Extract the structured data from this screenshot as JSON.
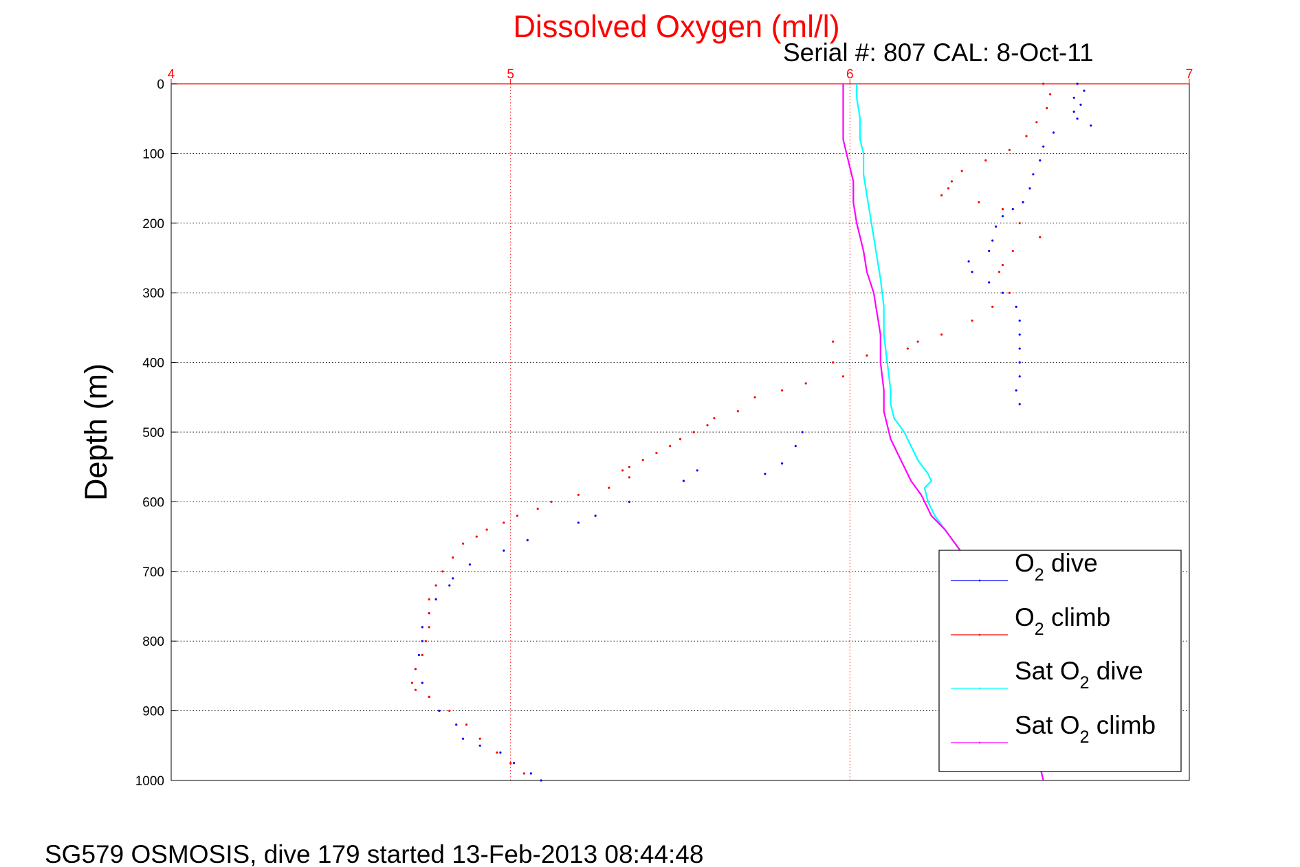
{
  "chart_data": {
    "type": "scatter",
    "title": "Dissolved Oxygen (ml/l)",
    "subtitle": "Serial #: 807  CAL: 8-Oct-11",
    "ylabel": "Depth (m)",
    "footer": "SG579 OSMOSIS, dive 179 started 13-Feb-2013 08:44:48",
    "xlim": [
      4,
      7
    ],
    "ylim": [
      0,
      1000
    ],
    "y_reversed": true,
    "x_ticks": [
      "4",
      "5",
      "6",
      "7"
    ],
    "y_ticks": [
      "0",
      "100",
      "200",
      "300",
      "400",
      "500",
      "600",
      "700",
      "800",
      "900",
      "1000"
    ],
    "grid": true,
    "legend_position": "lower-right",
    "series": [
      {
        "name": "O2 dive",
        "legend_main": "O",
        "legend_sub": "2",
        "legend_tail": " dive",
        "color": "#0000ff",
        "style": "dots",
        "points": [
          [
            6.67,
            0
          ],
          [
            6.69,
            10
          ],
          [
            6.66,
            20
          ],
          [
            6.68,
            30
          ],
          [
            6.66,
            40
          ],
          [
            6.67,
            50
          ],
          [
            6.71,
            60
          ],
          [
            6.6,
            70
          ],
          [
            6.57,
            90
          ],
          [
            6.56,
            110
          ],
          [
            6.54,
            130
          ],
          [
            6.53,
            150
          ],
          [
            6.51,
            170
          ],
          [
            6.48,
            180
          ],
          [
            6.45,
            190
          ],
          [
            6.43,
            205
          ],
          [
            6.42,
            225
          ],
          [
            6.41,
            240
          ],
          [
            6.35,
            255
          ],
          [
            6.36,
            270
          ],
          [
            6.41,
            285
          ],
          [
            6.45,
            300
          ],
          [
            6.49,
            320
          ],
          [
            6.5,
            340
          ],
          [
            6.5,
            360
          ],
          [
            6.5,
            380
          ],
          [
            6.5,
            400
          ],
          [
            6.5,
            420
          ],
          [
            6.49,
            440
          ],
          [
            6.5,
            460
          ],
          [
            5.86,
            500
          ],
          [
            5.84,
            520
          ],
          [
            5.8,
            545
          ],
          [
            5.75,
            560
          ],
          [
            5.55,
            555
          ],
          [
            5.51,
            570
          ],
          [
            5.35,
            600
          ],
          [
            5.25,
            620
          ],
          [
            5.2,
            630
          ],
          [
            5.05,
            655
          ],
          [
            4.98,
            670
          ],
          [
            4.88,
            690
          ],
          [
            4.83,
            710
          ],
          [
            4.82,
            720
          ],
          [
            4.78,
            740
          ],
          [
            4.76,
            760
          ],
          [
            4.74,
            780
          ],
          [
            4.74,
            800
          ],
          [
            4.73,
            820
          ],
          [
            4.72,
            840
          ],
          [
            4.74,
            860
          ],
          [
            4.76,
            880
          ],
          [
            4.79,
            900
          ],
          [
            4.84,
            920
          ],
          [
            4.86,
            940
          ],
          [
            4.91,
            950
          ],
          [
            4.97,
            960
          ],
          [
            5.01,
            975
          ],
          [
            5.06,
            990
          ],
          [
            5.09,
            1000
          ]
        ]
      },
      {
        "name": "O2 climb",
        "legend_main": "O",
        "legend_sub": "2",
        "legend_tail": " climb",
        "color": "#ff0000",
        "style": "dots",
        "points": [
          [
            6.57,
            0
          ],
          [
            6.59,
            15
          ],
          [
            6.58,
            35
          ],
          [
            6.55,
            55
          ],
          [
            6.52,
            75
          ],
          [
            6.47,
            95
          ],
          [
            6.4,
            110
          ],
          [
            6.33,
            125
          ],
          [
            6.3,
            140
          ],
          [
            6.29,
            150
          ],
          [
            6.27,
            160
          ],
          [
            6.38,
            170
          ],
          [
            6.45,
            180
          ],
          [
            6.5,
            200
          ],
          [
            6.56,
            220
          ],
          [
            6.48,
            240
          ],
          [
            6.45,
            260
          ],
          [
            6.44,
            270
          ],
          [
            6.47,
            300
          ],
          [
            6.42,
            320
          ],
          [
            6.36,
            340
          ],
          [
            6.27,
            360
          ],
          [
            6.2,
            370
          ],
          [
            6.17,
            380
          ],
          [
            6.05,
            390
          ],
          [
            5.95,
            370
          ],
          [
            5.95,
            400
          ],
          [
            5.98,
            420
          ],
          [
            5.87,
            430
          ],
          [
            5.8,
            440
          ],
          [
            5.72,
            450
          ],
          [
            5.67,
            470
          ],
          [
            5.6,
            480
          ],
          [
            5.58,
            490
          ],
          [
            5.54,
            500
          ],
          [
            5.5,
            510
          ],
          [
            5.47,
            520
          ],
          [
            5.43,
            530
          ],
          [
            5.39,
            540
          ],
          [
            5.35,
            550
          ],
          [
            5.33,
            555
          ],
          [
            5.35,
            565
          ],
          [
            5.29,
            580
          ],
          [
            5.2,
            590
          ],
          [
            5.12,
            600
          ],
          [
            5.08,
            610
          ],
          [
            5.02,
            620
          ],
          [
            4.98,
            630
          ],
          [
            4.93,
            640
          ],
          [
            4.9,
            650
          ],
          [
            4.86,
            660
          ],
          [
            4.83,
            680
          ],
          [
            4.8,
            700
          ],
          [
            4.78,
            720
          ],
          [
            4.76,
            740
          ],
          [
            4.76,
            760
          ],
          [
            4.76,
            780
          ],
          [
            4.75,
            800
          ],
          [
            4.74,
            820
          ],
          [
            4.72,
            840
          ],
          [
            4.71,
            860
          ],
          [
            4.72,
            870
          ],
          [
            4.76,
            880
          ],
          [
            4.82,
            900
          ],
          [
            4.87,
            920
          ],
          [
            4.91,
            940
          ],
          [
            4.96,
            960
          ],
          [
            5.0,
            975
          ],
          [
            5.04,
            990
          ]
        ]
      },
      {
        "name": "Sat O2 dive",
        "legend_main": "Sat O",
        "legend_sub": "2",
        "legend_tail": " dive",
        "color": "#00ffff",
        "style": "line",
        "points": [
          [
            6.02,
            0
          ],
          [
            6.02,
            20
          ],
          [
            6.03,
            50
          ],
          [
            6.03,
            80
          ],
          [
            6.04,
            100
          ],
          [
            6.04,
            130
          ],
          [
            6.05,
            160
          ],
          [
            6.06,
            190
          ],
          [
            6.07,
            220
          ],
          [
            6.08,
            250
          ],
          [
            6.09,
            280
          ],
          [
            6.1,
            320
          ],
          [
            6.1,
            360
          ],
          [
            6.11,
            400
          ],
          [
            6.12,
            440
          ],
          [
            6.12,
            460
          ],
          [
            6.13,
            480
          ],
          [
            6.16,
            500
          ],
          [
            6.18,
            520
          ],
          [
            6.2,
            540
          ],
          [
            6.23,
            560
          ],
          [
            6.24,
            570
          ],
          [
            6.22,
            580
          ],
          [
            6.23,
            600
          ],
          [
            6.25,
            620
          ],
          [
            6.28,
            640
          ],
          [
            6.31,
            660
          ],
          [
            6.34,
            680
          ],
          [
            6.38,
            720
          ],
          [
            6.41,
            760
          ],
          [
            6.45,
            800
          ],
          [
            6.48,
            840
          ],
          [
            6.51,
            880
          ],
          [
            6.53,
            920
          ],
          [
            6.55,
            960
          ],
          [
            6.57,
            1000
          ]
        ]
      },
      {
        "name": "Sat O2 climb",
        "legend_main": "Sat O",
        "legend_sub": "2",
        "legend_tail": " climb",
        "color": "#ff00ff",
        "style": "line",
        "points": [
          [
            5.98,
            0
          ],
          [
            5.98,
            20
          ],
          [
            5.98,
            50
          ],
          [
            5.98,
            80
          ],
          [
            5.99,
            100
          ],
          [
            6.0,
            120
          ],
          [
            6.01,
            140
          ],
          [
            6.01,
            170
          ],
          [
            6.02,
            200
          ],
          [
            6.04,
            240
          ],
          [
            6.05,
            270
          ],
          [
            6.07,
            300
          ],
          [
            6.08,
            330
          ],
          [
            6.09,
            360
          ],
          [
            6.09,
            400
          ],
          [
            6.1,
            440
          ],
          [
            6.1,
            470
          ],
          [
            6.11,
            490
          ],
          [
            6.12,
            510
          ],
          [
            6.14,
            530
          ],
          [
            6.16,
            550
          ],
          [
            6.18,
            570
          ],
          [
            6.21,
            590
          ],
          [
            6.24,
            620
          ],
          [
            6.28,
            640
          ],
          [
            6.31,
            660
          ],
          [
            6.34,
            680
          ],
          [
            6.38,
            720
          ],
          [
            6.41,
            760
          ],
          [
            6.45,
            800
          ],
          [
            6.48,
            840
          ],
          [
            6.51,
            880
          ],
          [
            6.53,
            920
          ],
          [
            6.55,
            960
          ],
          [
            6.57,
            1000
          ]
        ]
      }
    ]
  }
}
